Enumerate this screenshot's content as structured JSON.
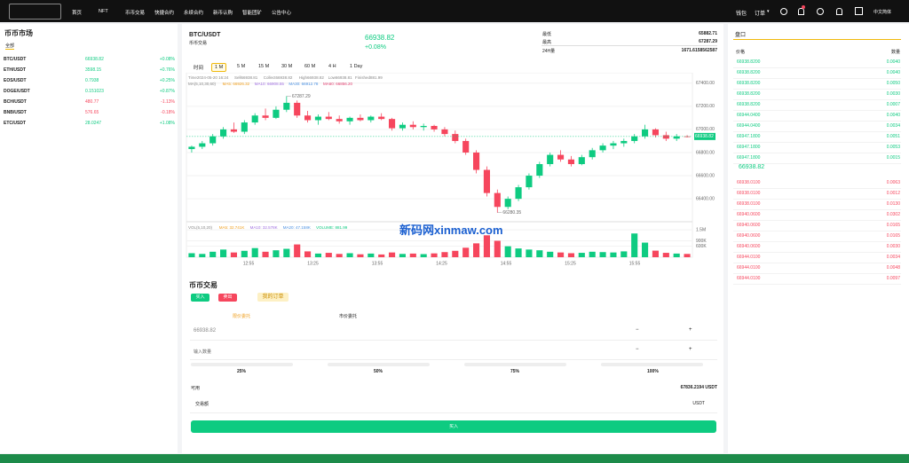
{
  "nav": {
    "items": [
      "首页",
      "NFT",
      "币币交易",
      "快捷合约",
      "永续合约",
      "新币认购",
      "智能团矿",
      "公告中心"
    ],
    "wallet": "钱包",
    "orders": "订单",
    "language": "中文简体"
  },
  "market": {
    "title": "币币市场",
    "tab": "全部",
    "rows": [
      [
        "BTC/USDT",
        "66938.82",
        "+0.08%"
      ],
      [
        "ETH/USDT",
        "3598.15",
        "+0.76%"
      ],
      [
        "EOS/USDT",
        "0.7938",
        "+0.25%"
      ],
      [
        "DOGE/USDT",
        "0.151023",
        "+0.87%"
      ],
      [
        "BCH/USDT",
        "480.77",
        "-1.13%"
      ],
      [
        "BNB/USDT",
        "576.65",
        "-0.18%"
      ],
      [
        "ETC/USDT",
        "28.0247",
        "+1.08%"
      ]
    ]
  },
  "ticker": {
    "pair": "BTC/USDT",
    "subtitle": "币币交易",
    "price": "66938.82",
    "change": "+0.08%",
    "low_label": "最低",
    "low": "65882.71",
    "high_label": "最高",
    "high": "67287.29",
    "volume_label": "24H量",
    "volume": "1671.6158562587"
  },
  "chart_data": {
    "type": "candlestick",
    "intervals": [
      "时间",
      "1 M",
      "5 M",
      "15 M",
      "30 M",
      "60 M",
      "4 H",
      "1 Day"
    ],
    "info": [
      "Time2024-05-20 16:24",
      "Sell66938.81",
      "Collect66938.82",
      "High66938.82",
      "Low66938.81",
      "Finished881.99"
    ],
    "ma_legend": [
      {
        "text": "MA(5,10,30,60)",
        "color": "#888888"
      },
      {
        "text": "MA5: 66926.32",
        "color": "#f0a020"
      },
      {
        "text": "MA10: 66908.55",
        "color": "#a070e0"
      },
      {
        "text": "MA30: 66912.78",
        "color": "#4a90e2"
      },
      {
        "text": "MA60: 66856.20",
        "color": "#e04070"
      }
    ],
    "up_color": "#0ecb81",
    "down_color": "#f6465d",
    "ylim": [
      66240,
      67490
    ],
    "yticks": [
      {
        "value": 67400,
        "label": "67400.00"
      },
      {
        "value": 67200,
        "label": "67200.00"
      },
      {
        "value": 67000,
        "label": "67000.00"
      },
      {
        "value": 66800,
        "label": "66800.00"
      },
      {
        "value": 66600,
        "label": "66600.00"
      },
      {
        "value": 66400,
        "label": "66400.00"
      }
    ],
    "high_annotation": 67287.29,
    "low_annotation": 66280.35,
    "last_price": 66938.82,
    "candles": [
      [
        66830,
        66860,
        66800,
        66850
      ],
      [
        66850,
        66900,
        66830,
        66880
      ],
      [
        66880,
        66960,
        66860,
        66940
      ],
      [
        66940,
        67020,
        66920,
        67000
      ],
      [
        67000,
        67060,
        66970,
        66980
      ],
      [
        66980,
        67080,
        66960,
        67060
      ],
      [
        67060,
        67140,
        67040,
        67120
      ],
      [
        67120,
        67180,
        67080,
        67100
      ],
      [
        67100,
        67200,
        67090,
        67170
      ],
      [
        67170,
        67287.29,
        67150,
        67230
      ],
      [
        67230,
        67250,
        67100,
        67120
      ],
      [
        67120,
        67160,
        67060,
        67080
      ],
      [
        67080,
        67130,
        67040,
        67110
      ],
      [
        67110,
        67150,
        67080,
        67090
      ],
      [
        67090,
        67120,
        67050,
        67070
      ],
      [
        67070,
        67110,
        67040,
        67100
      ],
      [
        67100,
        67130,
        67070,
        67080
      ],
      [
        67080,
        67120,
        67060,
        67110
      ],
      [
        67110,
        67140,
        67080,
        67090
      ],
      [
        67090,
        67100,
        66990,
        67010
      ],
      [
        67010,
        67060,
        66990,
        67040
      ],
      [
        67040,
        67070,
        67000,
        67020
      ],
      [
        67020,
        67050,
        66990,
        67030
      ],
      [
        67030,
        67040,
        66980,
        67000
      ],
      [
        67000,
        67020,
        66940,
        66960
      ],
      [
        66960,
        66990,
        66880,
        66900
      ],
      [
        66900,
        66920,
        66780,
        66800
      ],
      [
        66800,
        66820,
        66620,
        66650
      ],
      [
        66650,
        66680,
        66420,
        66450
      ],
      [
        66450,
        66480,
        66280.35,
        66330
      ],
      [
        66330,
        66420,
        66310,
        66400
      ],
      [
        66400,
        66520,
        66380,
        66500
      ],
      [
        66500,
        66620,
        66480,
        66600
      ],
      [
        66600,
        66720,
        66580,
        66700
      ],
      [
        66700,
        66800,
        66680,
        66780
      ],
      [
        66780,
        66820,
        66720,
        66740
      ],
      [
        66740,
        66770,
        66680,
        66700
      ],
      [
        66700,
        66780,
        66690,
        66760
      ],
      [
        66760,
        66840,
        66740,
        66820
      ],
      [
        66820,
        66880,
        66800,
        66860
      ],
      [
        66860,
        66900,
        66830,
        66880
      ],
      [
        66880,
        66920,
        66850,
        66900
      ],
      [
        66900,
        66960,
        66880,
        66940
      ],
      [
        66940,
        67040,
        66920,
        67000
      ],
      [
        67000,
        67010,
        66930,
        66950
      ],
      [
        66950,
        66980,
        66900,
        66920
      ],
      [
        66920,
        66960,
        66900,
        66940
      ],
      [
        66940,
        66950,
        66930,
        66938.82
      ]
    ],
    "volume": {
      "legend": [
        {
          "text": "VOL(5,10,20)",
          "color": "#888888"
        },
        {
          "text": "MA5: 32.741K",
          "color": "#f0a020"
        },
        {
          "text": "MA10: 32.578K",
          "color": "#a070e0"
        },
        {
          "text": "MA20: 47.158K",
          "color": "#4a90e2"
        },
        {
          "text": "VOLUME: 881.99",
          "color": "#0ecb81"
        }
      ],
      "values": [
        220000,
        180000,
        300000,
        420000,
        260000,
        350000,
        500000,
        300000,
        380000,
        460000,
        700000,
        320000,
        200000,
        240000,
        180000,
        220000,
        160000,
        200000,
        150000,
        260000,
        180000,
        200000,
        170000,
        210000,
        280000,
        350000,
        520000,
        760000,
        1200000,
        900000,
        600000,
        480000,
        420000,
        380000,
        300000,
        260000,
        220000,
        240000,
        300000,
        280000,
        260000,
        320000,
        1300000,
        800000,
        360000,
        240000,
        200000,
        180000
      ],
      "ylim": [
        0,
        1700000
      ],
      "yticks": [
        {
          "value": 1500000,
          "label": "1.5M"
        },
        {
          "value": 900000,
          "label": "900K"
        },
        {
          "value": 600000,
          "label": "600K"
        }
      ]
    },
    "time_labels": [
      "12:55",
      "13:25",
      "13:55",
      "14:25",
      "14:55",
      "15:25",
      "15:55"
    ]
  },
  "trade": {
    "title": "币币交易",
    "buy_tab": "买入",
    "sell_tab": "卖出",
    "my_orders": "我的订单",
    "limit": "限价委托",
    "market": "市价委托",
    "price": "66938.82",
    "amount_placeholder": "输入数量",
    "percents": [
      "25%",
      "50%",
      "75%",
      "100%"
    ],
    "available_label": "可用",
    "available": "67836.2194 USDT",
    "turnover_label": "交易额",
    "turnover_unit": "USDT",
    "submit": "买入"
  },
  "orderbook": {
    "title": "盘口",
    "price_header": "价格",
    "qty_header": "数量",
    "asks": [
      [
        "66938.8200",
        "0.0040"
      ],
      [
        "66938.8200",
        "0.0040"
      ],
      [
        "66938.8200",
        "0.0050"
      ],
      [
        "66938.8200",
        "0.0030"
      ],
      [
        "66938.8200",
        "0.0007"
      ],
      [
        "66944.0400",
        "0.0040"
      ],
      [
        "66944.0400",
        "0.0034"
      ],
      [
        "66947.1800",
        "0.0051"
      ],
      [
        "66947.1800",
        "0.0053"
      ],
      [
        "66947.1800",
        "0.0015"
      ]
    ],
    "mid": "66938.82",
    "bids": [
      [
        "66938.0100",
        "0.0063"
      ],
      [
        "66938.0100",
        "0.0012"
      ],
      [
        "66938.0100",
        "0.0130"
      ],
      [
        "66940.0600",
        "0.0302"
      ],
      [
        "66940.0600",
        "0.0165"
      ],
      [
        "66940.0600",
        "0.0165"
      ],
      [
        "66940.0600",
        "0.0030"
      ],
      [
        "66944.0100",
        "0.0034"
      ],
      [
        "66944.0100",
        "0.0048"
      ],
      [
        "66944.0100",
        "0.0097"
      ]
    ]
  },
  "watermark": "新码网xinmaw.com"
}
